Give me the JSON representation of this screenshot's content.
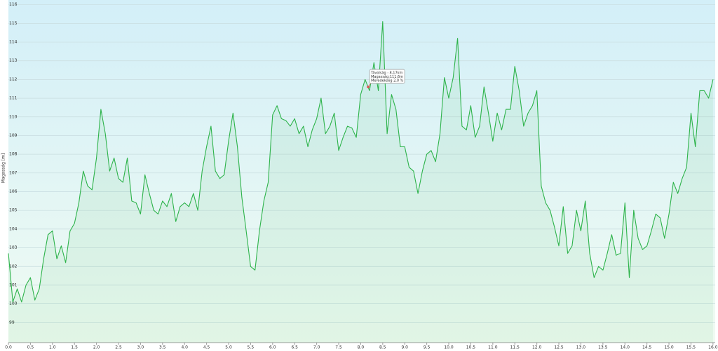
{
  "chart_data": {
    "type": "line",
    "y_label": "Magasság [m]",
    "x": [
      0,
      0.1,
      0.2,
      0.3,
      0.4,
      0.5,
      0.6,
      0.7,
      0.8,
      0.9,
      1.0,
      1.1,
      1.2,
      1.3,
      1.4,
      1.5,
      1.6,
      1.7,
      1.8,
      1.9,
      2.0,
      2.1,
      2.2,
      2.3,
      2.4,
      2.5,
      2.6,
      2.7,
      2.8,
      2.9,
      3.0,
      3.1,
      3.2,
      3.3,
      3.4,
      3.5,
      3.6,
      3.7,
      3.8,
      3.9,
      4.0,
      4.1,
      4.2,
      4.3,
      4.4,
      4.5,
      4.6,
      4.7,
      4.8,
      4.9,
      5.0,
      5.1,
      5.2,
      5.3,
      5.4,
      5.5,
      5.6,
      5.7,
      5.8,
      5.9,
      6.0,
      6.1,
      6.2,
      6.3,
      6.4,
      6.5,
      6.6,
      6.7,
      6.8,
      6.9,
      7.0,
      7.1,
      7.2,
      7.3,
      7.4,
      7.5,
      7.6,
      7.7,
      7.8,
      7.9,
      8.0,
      8.1,
      8.2,
      8.3,
      8.4,
      8.5,
      8.6,
      8.7,
      8.8,
      8.9,
      9.0,
      9.1,
      9.2,
      9.3,
      9.4,
      9.5,
      9.6,
      9.7,
      9.8,
      9.9,
      10.0,
      10.1,
      10.2,
      10.3,
      10.4,
      10.5,
      10.6,
      10.7,
      10.8,
      10.9,
      11.0,
      11.1,
      11.2,
      11.3,
      11.4,
      11.5,
      11.6,
      11.7,
      11.8,
      11.9,
      12.0,
      12.1,
      12.2,
      12.3,
      12.4,
      12.5,
      12.6,
      12.7,
      12.8,
      12.9,
      13.0,
      13.1,
      13.2,
      13.3,
      13.4,
      13.5,
      13.6,
      13.7,
      13.8,
      13.9,
      14.0,
      14.1,
      14.2,
      14.3,
      14.4,
      14.5,
      14.6,
      14.7,
      14.8,
      14.9,
      15.0,
      15.1,
      15.2,
      15.3,
      15.4,
      15.5,
      15.6,
      15.7,
      15.8,
      15.9,
      16.0
    ],
    "series": [
      {
        "color": "#2db34a",
        "values": [
          102.7,
          100.1,
          100.8,
          100.1,
          101,
          101.4,
          100.2,
          100.8,
          102.4,
          103.7,
          103.9,
          102.4,
          103.1,
          102.2,
          103.9,
          104.3,
          105.4,
          107.1,
          106.3,
          106.1,
          107.8,
          110.4,
          109.1,
          107.1,
          107.8,
          106.7,
          106.5,
          107.8,
          105.5,
          105.4,
          104.8,
          106.9,
          105.9,
          105,
          104.8,
          105.5,
          105.2,
          105.9,
          104.4,
          105.2,
          105.4,
          105.2,
          105.9,
          105,
          107.1,
          108.4,
          109.5,
          107.1,
          106.7,
          106.9,
          108.7,
          110.2,
          108.4,
          105.7,
          103.9,
          102,
          101.8,
          103.9,
          105.5,
          106.5,
          110.1,
          110.6,
          109.9,
          109.8,
          109.5,
          109.9,
          109.1,
          109.5,
          108.4,
          109.3,
          109.9,
          111,
          109.1,
          109.5,
          110.2,
          108.2,
          108.9,
          109.5,
          109.4,
          108.9,
          111.2,
          112,
          111.4,
          112.9,
          111.4,
          115.1,
          109.1,
          111.2,
          110.4,
          108.4,
          108.4,
          107.3,
          107.1,
          105.9,
          107.1,
          108,
          108.2,
          107.6,
          109.1,
          112.1,
          111,
          112.1,
          114.2,
          109.5,
          109.3,
          110.6,
          108.9,
          109.5,
          111.6,
          110.2,
          108.7,
          110.2,
          109.3,
          110.4,
          110.4,
          112.7,
          111.4,
          109.5,
          110.2,
          110.6,
          111.4,
          106.3,
          105.4,
          105,
          104.1,
          103.1,
          105.2,
          102.7,
          103.1,
          105,
          103.9,
          105.5,
          102.7,
          101.4,
          102,
          101.8,
          102.7,
          103.7,
          102.6,
          102.7,
          105.4,
          101.4,
          105,
          103.5,
          102.9,
          103.1,
          103.9,
          104.8,
          104.6,
          103.5,
          104.8,
          106.5,
          105.9,
          106.7,
          107.3,
          110.2,
          108.4,
          111.4,
          111.4,
          111,
          112
        ]
      }
    ],
    "xlim": [
      0,
      16.05
    ],
    "xticks": [
      {
        "value": 0,
        "label": "0.0"
      },
      0.5,
      {
        "value": 1,
        "label": "1.0"
      },
      1.5,
      {
        "value": 2,
        "label": "2.0"
      },
      2.5,
      {
        "value": 3,
        "label": "3.0"
      },
      3.5,
      {
        "value": 4,
        "label": "4.0"
      },
      4.5,
      {
        "value": 5,
        "label": "5.0"
      },
      5.5,
      {
        "value": 6,
        "label": "6.0"
      },
      6.5,
      {
        "value": 7,
        "label": "7.0"
      },
      7.5,
      {
        "value": 8,
        "label": "8.0"
      },
      8.5,
      {
        "value": 9,
        "label": "9.0"
      },
      9.5,
      {
        "value": 10,
        "label": "10.0"
      },
      10.5,
      {
        "value": 11,
        "label": "11.0"
      },
      11.5,
      {
        "value": 12,
        "label": "12.0"
      },
      12.5,
      {
        "value": 13,
        "label": "13.0"
      },
      13.5,
      {
        "value": 14,
        "label": "14.0"
      },
      14.5,
      {
        "value": 15,
        "label": "15.0"
      },
      15.5,
      {
        "value": 16,
        "label": "16.0"
      }
    ],
    "ylim": [
      98,
      116.25
    ],
    "yticks": [
      99,
      100,
      101,
      102,
      103,
      104,
      105,
      106,
      107,
      108,
      109,
      110,
      111,
      112,
      113,
      114,
      115,
      116
    ],
    "grid": true,
    "annotation": {
      "x": 8.17,
      "y": 111.6,
      "lines": [
        "Távolság : 8,17km",
        "Magasság:111,6m",
        "Meredekség 2,0 %"
      ]
    }
  }
}
